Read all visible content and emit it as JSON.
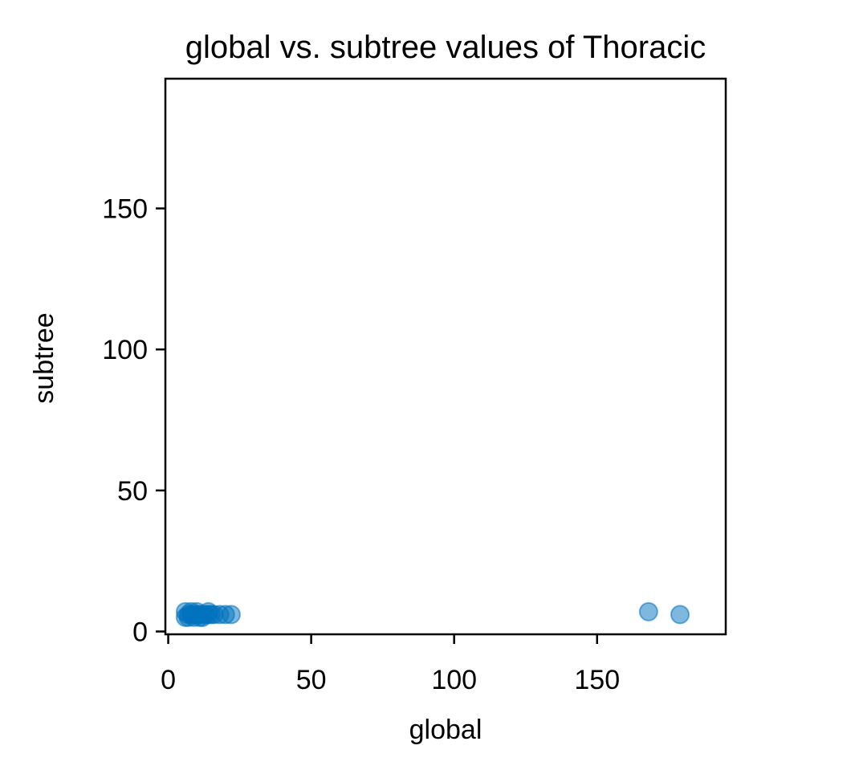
{
  "chart_data": {
    "type": "scatter",
    "title": "global vs. subtree values of Thoracic",
    "xlabel": "global",
    "ylabel": "subtree",
    "xlim": [
      -1,
      195
    ],
    "ylim": [
      -1,
      196
    ],
    "xticks": [
      0,
      50,
      100,
      150
    ],
    "yticks": [
      0,
      50,
      100,
      150
    ],
    "grid": false,
    "legend": "none",
    "marker_color": "#0072BD",
    "marker_alpha": 0.5,
    "series": [
      {
        "points": [
          {
            "x": 6,
            "y": 5
          },
          {
            "x": 6,
            "y": 7
          },
          {
            "x": 7,
            "y": 6
          },
          {
            "x": 7,
            "y": 5
          },
          {
            "x": 8,
            "y": 7
          },
          {
            "x": 8,
            "y": 6
          },
          {
            "x": 9,
            "y": 6
          },
          {
            "x": 9,
            "y": 5
          },
          {
            "x": 10,
            "y": 7
          },
          {
            "x": 10,
            "y": 6
          },
          {
            "x": 11,
            "y": 6
          },
          {
            "x": 11,
            "y": 5
          },
          {
            "x": 12,
            "y": 6
          },
          {
            "x": 12,
            "y": 5
          },
          {
            "x": 13,
            "y": 6
          },
          {
            "x": 14,
            "y": 7
          },
          {
            "x": 14,
            "y": 6
          },
          {
            "x": 15,
            "y": 6
          },
          {
            "x": 16,
            "y": 6
          },
          {
            "x": 18,
            "y": 6
          },
          {
            "x": 20,
            "y": 6
          },
          {
            "x": 22,
            "y": 6
          },
          {
            "x": 168,
            "y": 7
          },
          {
            "x": 179,
            "y": 6
          }
        ]
      }
    ]
  }
}
